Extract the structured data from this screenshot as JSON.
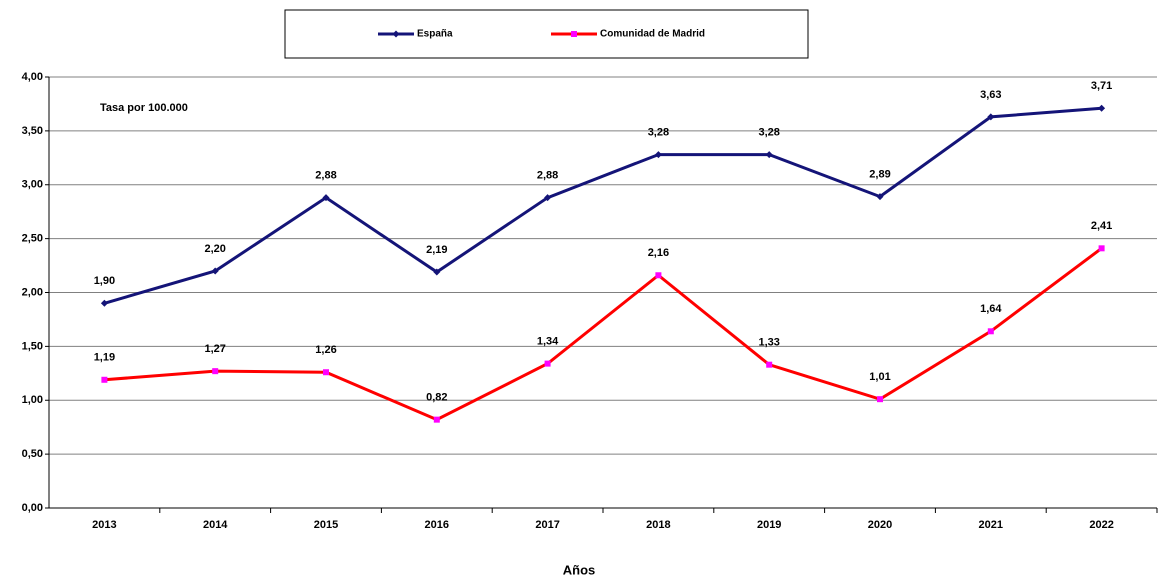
{
  "chart_data": {
    "type": "line",
    "annotation": "Tasa por 100.000",
    "x_label": "Años",
    "categories": [
      "2013",
      "2014",
      "2015",
      "2016",
      "2017",
      "2018",
      "2019",
      "2020",
      "2021",
      "2022"
    ],
    "series": [
      {
        "name": "España",
        "color": "#141478",
        "marker_color": "#141478",
        "values": [
          1.9,
          2.2,
          2.88,
          2.19,
          2.88,
          3.28,
          3.28,
          2.89,
          3.63,
          3.71
        ],
        "value_labels": [
          "1,90",
          "2,20",
          "2,88",
          "2,19",
          "2,88",
          "3,28",
          "3,28",
          "2,89",
          "3,63",
          "3,71"
        ]
      },
      {
        "name": "Comunidad de Madrid",
        "color": "#ff0000",
        "marker_color": "#ff00ff",
        "values": [
          1.19,
          1.27,
          1.26,
          0.82,
          1.34,
          2.16,
          1.33,
          1.01,
          1.64,
          2.41
        ],
        "value_labels": [
          "1,19",
          "1,27",
          "1,26",
          "0,82",
          "1,34",
          "2,16",
          "1,33",
          "1,01",
          "1,64",
          "2,41"
        ]
      }
    ],
    "ylim": [
      0,
      4
    ],
    "yticks": [
      {
        "value": 0,
        "label": "0,00"
      },
      {
        "value": 0.5,
        "label": "0,50"
      },
      {
        "value": 1,
        "label": "1,00"
      },
      {
        "value": 1.5,
        "label": "1,50"
      },
      {
        "value": 2,
        "label": "2,00"
      },
      {
        "value": 2.5,
        "label": "2,50"
      },
      {
        "value": 3,
        "label": "3,00"
      },
      {
        "value": 3.5,
        "label": "3,50"
      },
      {
        "value": 4,
        "label": "4,00"
      }
    ],
    "grid": true,
    "legend": "top"
  }
}
